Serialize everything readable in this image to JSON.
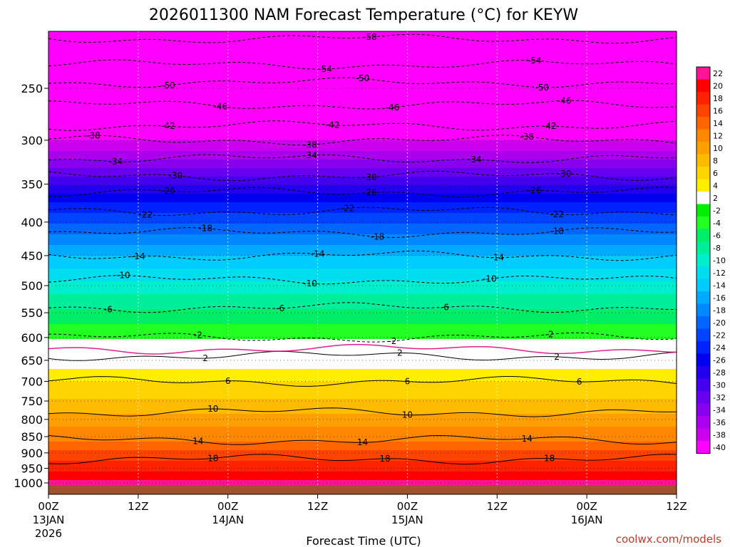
{
  "chart_data": {
    "type": "heatmap",
    "title": "2026011300 NAM Forecast Temperature (°C) for KEYW",
    "xlabel": "Forecast Time (UTC)",
    "ylabel": "",
    "credit": "coolwx.com/models",
    "x_range_hours": [
      0,
      84
    ],
    "x_ticks": [
      {
        "hour": 0,
        "label": "00Z",
        "sub": "13JAN",
        "sub2": "2026"
      },
      {
        "hour": 12,
        "label": "12Z",
        "sub": "",
        "sub2": ""
      },
      {
        "hour": 24,
        "label": "00Z",
        "sub": "14JAN",
        "sub2": ""
      },
      {
        "hour": 36,
        "label": "12Z",
        "sub": "",
        "sub2": ""
      },
      {
        "hour": 48,
        "label": "00Z",
        "sub": "15JAN",
        "sub2": ""
      },
      {
        "hour": 60,
        "label": "12Z",
        "sub": "",
        "sub2": ""
      },
      {
        "hour": 72,
        "label": "00Z",
        "sub": "16JAN",
        "sub2": ""
      },
      {
        "hour": 84,
        "label": "12Z",
        "sub": "",
        "sub2": ""
      }
    ],
    "y_axis": "pressure_hPa",
    "y_ticks": [
      "250",
      "300",
      "350",
      "400",
      "450",
      "500",
      "550",
      "600",
      "650",
      "700",
      "750",
      "800",
      "850",
      "900",
      "950",
      "1000"
    ],
    "colorbar": {
      "levels": [
        22,
        20,
        18,
        16,
        14,
        12,
        10,
        8,
        6,
        4,
        2,
        -2,
        -4,
        -6,
        -8,
        -10,
        -12,
        -14,
        -16,
        -18,
        -20,
        -22,
        -24,
        -26,
        -28,
        -30,
        -32,
        -34,
        -36,
        -38,
        -40
      ],
      "labels": [
        "22",
        "20",
        "18",
        "16",
        "14",
        "12",
        "10",
        "8",
        "6",
        "4",
        "2",
        "-2",
        "-4",
        "-6",
        "-8",
        "-10",
        "-12",
        "-14",
        "-16",
        "-18",
        "-20",
        "-22",
        "-24",
        "-26",
        "-28",
        "-30",
        "-32",
        "-34",
        "-36",
        "-38",
        "-40"
      ],
      "colors": [
        "#ff1493",
        "#ff0000",
        "#ff2200",
        "#ff4400",
        "#ff6600",
        "#ff8800",
        "#ffa000",
        "#ffbb00",
        "#ffd400",
        "#ffee00",
        "#ffffff",
        "#00ee00",
        "#22ff22",
        "#00ee66",
        "#00ee99",
        "#00eecc",
        "#00ddee",
        "#00ccff",
        "#00aaff",
        "#0088ff",
        "#0066ff",
        "#0044ff",
        "#0022ff",
        "#0000ee",
        "#2200ee",
        "#4400ee",
        "#6600ee",
        "#8800ee",
        "#aa00ee",
        "#cc00ee",
        "#ff00ff"
      ]
    },
    "temperature_profile": [
      {
        "p": 210,
        "t": -58
      },
      {
        "p": 230,
        "t": -54
      },
      {
        "p": 245,
        "t": -50
      },
      {
        "p": 265,
        "t": -46
      },
      {
        "p": 285,
        "t": -42
      },
      {
        "p": 300,
        "t": -38
      },
      {
        "p": 320,
        "t": -34
      },
      {
        "p": 340,
        "t": -30
      },
      {
        "p": 360,
        "t": -26
      },
      {
        "p": 385,
        "t": -22
      },
      {
        "p": 415,
        "t": -18
      },
      {
        "p": 450,
        "t": -14
      },
      {
        "p": 490,
        "t": -10
      },
      {
        "p": 540,
        "t": -6
      },
      {
        "p": 600,
        "t": -2
      },
      {
        "p": 640,
        "t": 2
      },
      {
        "p": 700,
        "t": 6
      },
      {
        "p": 780,
        "t": 10
      },
      {
        "p": 860,
        "t": 14
      },
      {
        "p": 920,
        "t": 18
      },
      {
        "p": 990,
        "t": 22
      }
    ],
    "contour_labels": [
      {
        "t": "-58",
        "hour": 43
      },
      {
        "t": "-54",
        "hour": 37
      },
      {
        "t": "-54",
        "hour": 65
      },
      {
        "t": "-50",
        "hour": 16
      },
      {
        "t": "-50",
        "hour": 42
      },
      {
        "t": "-50",
        "hour": 66
      },
      {
        "t": "-46",
        "hour": 23
      },
      {
        "t": "-46",
        "hour": 46
      },
      {
        "t": "-46",
        "hour": 69
      },
      {
        "t": "-42",
        "hour": 16
      },
      {
        "t": "-42",
        "hour": 38
      },
      {
        "t": "-42",
        "hour": 67
      },
      {
        "t": "-38",
        "hour": 6
      },
      {
        "t": "-38",
        "hour": 35
      },
      {
        "t": "-38",
        "hour": 64
      },
      {
        "t": "-34",
        "hour": 9
      },
      {
        "t": "-34",
        "hour": 35
      },
      {
        "t": "-34",
        "hour": 57
      },
      {
        "t": "-30",
        "hour": 17
      },
      {
        "t": "-30",
        "hour": 43
      },
      {
        "t": "-30",
        "hour": 69
      },
      {
        "t": "-26",
        "hour": 16
      },
      {
        "t": "-26",
        "hour": 43
      },
      {
        "t": "-26",
        "hour": 65
      },
      {
        "t": "-22",
        "hour": 13
      },
      {
        "t": "-22",
        "hour": 40
      },
      {
        "t": "-22",
        "hour": 68
      },
      {
        "t": "-18",
        "hour": 21
      },
      {
        "t": "-18",
        "hour": 44
      },
      {
        "t": "-18",
        "hour": 68
      },
      {
        "t": "-14",
        "hour": 12
      },
      {
        "t": "-14",
        "hour": 36
      },
      {
        "t": "-14",
        "hour": 60
      },
      {
        "t": "-10",
        "hour": 10
      },
      {
        "t": "-10",
        "hour": 35
      },
      {
        "t": "-10",
        "hour": 59
      },
      {
        "t": "-6",
        "hour": 8
      },
      {
        "t": "-6",
        "hour": 31
      },
      {
        "t": "-6",
        "hour": 53
      },
      {
        "t": "-2",
        "hour": 20
      },
      {
        "t": "-2",
        "hour": 46
      },
      {
        "t": "-2",
        "hour": 67
      },
      {
        "t": "2",
        "hour": 21
      },
      {
        "t": "2",
        "hour": 47
      },
      {
        "t": "2",
        "hour": 68
      },
      {
        "t": "6",
        "hour": 24
      },
      {
        "t": "6",
        "hour": 48
      },
      {
        "t": "6",
        "hour": 71
      },
      {
        "t": "10",
        "hour": 22
      },
      {
        "t": "10",
        "hour": 48
      },
      {
        "t": "14",
        "hour": 20
      },
      {
        "t": "14",
        "hour": 42
      },
      {
        "t": "14",
        "hour": 64
      },
      {
        "t": "18",
        "hour": 22
      },
      {
        "t": "18",
        "hour": 45
      },
      {
        "t": "18",
        "hour": 67
      }
    ]
  }
}
